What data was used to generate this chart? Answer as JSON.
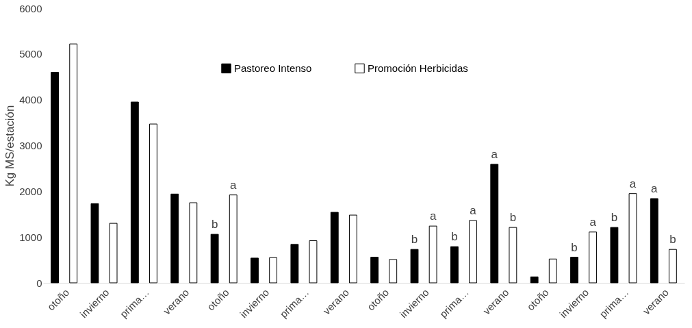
{
  "chart_data": {
    "type": "bar",
    "ylabel": "Kg MS/estación",
    "categories": [
      "otoño",
      "invierno",
      "prima…",
      "verano",
      "otoño",
      "invierno",
      "prima…",
      "verano",
      "otoño",
      "invierno",
      "prima…",
      "verano",
      "otoño",
      "invierno",
      "prima…",
      "verano"
    ],
    "series": [
      {
        "name": "Pastoreo Intenso",
        "color": "#000000",
        "values": [
          4600,
          1730,
          3950,
          1940,
          1060,
          540,
          840,
          1540,
          560,
          730,
          790,
          2590,
          130,
          560,
          1210,
          1840
        ],
        "value_labels": [
          null,
          null,
          null,
          null,
          "b",
          null,
          null,
          null,
          null,
          "b",
          "b",
          "a",
          null,
          "b",
          "b",
          "a"
        ]
      },
      {
        "name": "Promoción Herbicidas",
        "color": "#ffffff",
        "values": [
          5220,
          1300,
          3470,
          1750,
          1920,
          550,
          920,
          1480,
          510,
          1240,
          1360,
          1210,
          520,
          1110,
          1950,
          730
        ],
        "value_labels": [
          null,
          null,
          null,
          null,
          "a",
          null,
          null,
          null,
          null,
          "a",
          "a",
          "b",
          null,
          "a",
          "a",
          "b"
        ]
      }
    ],
    "ylim": [
      0,
      6000
    ],
    "yticks": [
      0,
      1000,
      2000,
      3000,
      4000,
      5000,
      6000
    ],
    "grid": false,
    "legend": "top"
  }
}
